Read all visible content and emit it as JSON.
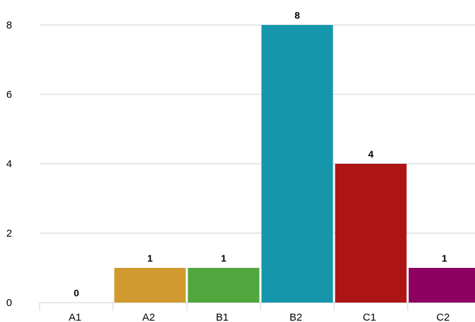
{
  "chart_data": {
    "type": "bar",
    "categories": [
      "A1",
      "A2",
      "B1",
      "B2",
      "C1",
      "C2"
    ],
    "values": [
      0,
      1,
      1,
      8,
      4,
      1
    ],
    "colors": [
      "#1a96ab",
      "#d09a30",
      "#52a63e",
      "#1696ab",
      "#ad1515",
      "#8b0060"
    ],
    "data_labels": [
      "0",
      "1",
      "1",
      "8",
      "4",
      "1"
    ],
    "y_ticks": [
      "0",
      "2",
      "4",
      "6",
      "8"
    ],
    "y_tick_values": [
      0,
      2,
      4,
      6,
      8
    ],
    "ylim": [
      0,
      8
    ],
    "grid": true,
    "legend": "none",
    "title": "",
    "xlabel": "",
    "ylabel": ""
  }
}
